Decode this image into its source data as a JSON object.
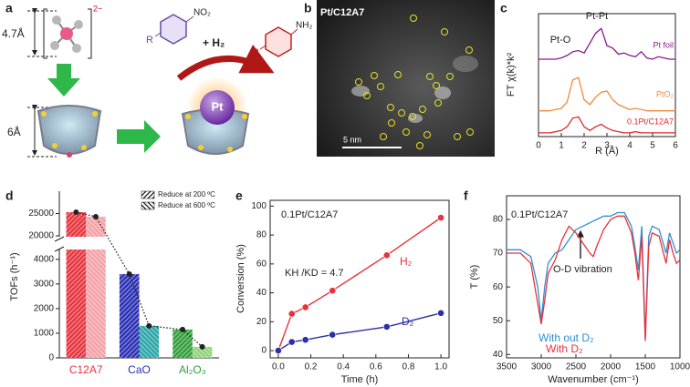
{
  "panels": {
    "a": {
      "panel_label": "a",
      "small_size": "4.7Å",
      "charge": "2−",
      "large_size": "6Å",
      "substituent_left": "R",
      "nitro_group": "NO₂",
      "reagent": "+ H₂",
      "substituent_right": "R",
      "amine_group": "NH₂",
      "metal": "Pt"
    },
    "b": {
      "panel_label": "b",
      "sample": "Pt/C12A7",
      "scale_bar": "5 nm"
    }
  },
  "chart_data": [
    {
      "panel_label": "c",
      "type": "line",
      "xlabel": "R (Å)",
      "ylabel": "FT χ(k)*k²",
      "annotations": [
        "Pt-Pt",
        "Pt-O"
      ],
      "x": [
        0,
        0.25,
        0.5,
        0.75,
        1,
        1.25,
        1.5,
        1.75,
        2,
        2.25,
        2.5,
        2.75,
        3,
        3.25,
        3.5,
        3.75,
        4,
        4.25,
        4.5,
        4.75,
        5,
        5.25,
        5.5,
        5.75,
        6
      ],
      "xlim": [
        0,
        6
      ],
      "xticks": [
        0,
        1,
        2,
        3,
        4,
        5,
        6
      ],
      "ylim": [
        0,
        10
      ],
      "legend": "inline",
      "frame": true,
      "series": [
        {
          "name": "Pt foil",
          "color": "#8b1a8b",
          "values": [
            6.3,
            6.3,
            6.3,
            6.3,
            6.4,
            6.6,
            6.9,
            7.0,
            6.8,
            7.6,
            8.4,
            8.8,
            7.4,
            7.2,
            6.7,
            6.8,
            6.6,
            6.5,
            6.9,
            6.4,
            6.3,
            6.5,
            6.4,
            6.3,
            6.3
          ]
        },
        {
          "name": "PtO₂",
          "color": "#f08a3c",
          "values": [
            2.1,
            2.1,
            2.1,
            2.2,
            2.3,
            2.8,
            4.6,
            4.8,
            3.0,
            2.6,
            3.2,
            3.6,
            3.7,
            3.0,
            2.6,
            2.4,
            2.2,
            2.3,
            2.2,
            2.1,
            2.1,
            2.1,
            2.1,
            2.1,
            2.1
          ]
        },
        {
          "name": "0.1Pt/C12A7",
          "color": "#e02828",
          "values": [
            0.3,
            0.3,
            0.3,
            0.4,
            0.5,
            0.8,
            1.5,
            1.6,
            0.8,
            0.5,
            0.8,
            1.0,
            0.7,
            0.5,
            0.4,
            0.3,
            0.3,
            0.4,
            0.3,
            0.3,
            0.3,
            0.3,
            0.3,
            0.3,
            0.3
          ]
        }
      ]
    },
    {
      "panel_label": "d",
      "type": "bar",
      "ylabel": "TOFs (h⁻¹)",
      "categories": [
        "C12A7",
        "CaO",
        "Al₂O₃"
      ],
      "category_colors": [
        "#e8323c",
        "#2b2fb5",
        "#2f9e3a"
      ],
      "ylim": [
        0,
        30000
      ],
      "ybreak": [
        4400,
        19800
      ],
      "yticks": [
        0,
        1000,
        2000,
        3000,
        4000,
        20000,
        25000
      ],
      "legend": "upper right",
      "series": [
        {
          "name": "Reduce at 200 ºC",
          "hatch": "/",
          "colors": [
            "#e8323c",
            "#2b2fb5",
            "#2f9e3a"
          ],
          "values": [
            25300,
            3400,
            1150
          ]
        },
        {
          "name": "Reduce at 600 ºC",
          "hatch": "\\",
          "colors": [
            "#f4a0a6",
            "#2aa5a8",
            "#8fd37a"
          ],
          "values": [
            24300,
            1300,
            450
          ]
        }
      ]
    },
    {
      "panel_label": "e",
      "type": "line",
      "xlabel": "Time (h)",
      "ylabel": "Conversion (%)",
      "annotations": [
        "0.1Pt/C12A7",
        "KH /KD = 4.7"
      ],
      "x": [
        0,
        0.083,
        0.167,
        0.333,
        0.667,
        1.0
      ],
      "xlim": [
        -0.05,
        1.05
      ],
      "xticks": [
        {
          "value": 0,
          "label": "0.0"
        },
        0.2,
        0.4,
        0.6,
        0.8,
        {
          "value": 1,
          "label": "1.0"
        }
      ],
      "ylim": [
        -5,
        104
      ],
      "yticks": [
        0,
        20,
        40,
        60,
        80,
        100
      ],
      "markers": true,
      "legend": "inline",
      "frame": true,
      "series": [
        {
          "name": "H₂",
          "color": "#e8323c",
          "values": [
            0,
            25.5,
            30,
            41.5,
            66,
            92
          ]
        },
        {
          "name": "D₂",
          "color": "#2b2fa8",
          "values": [
            0,
            6,
            7.5,
            11,
            16.5,
            26
          ]
        }
      ]
    },
    {
      "panel_label": "f",
      "type": "line",
      "xlabel": "Wavenumber (cm⁻¹)",
      "ylabel": "T (%)",
      "annotations": [
        "0.1Pt/C12A7",
        "O-D vibration"
      ],
      "x": [
        3500,
        3300,
        3150,
        3050,
        3000,
        2950,
        2900,
        2800,
        2700,
        2600,
        2500,
        2400,
        2300,
        2250,
        2200,
        2100,
        2000,
        1900,
        1800,
        1700,
        1650,
        1600,
        1550,
        1500,
        1450,
        1400,
        1300,
        1200,
        1150,
        1100,
        1050,
        1000
      ],
      "xlim": [
        3500,
        1000
      ],
      "xticks": [
        3500,
        3000,
        2500,
        2000,
        1500,
        1000
      ],
      "ylim": [
        39,
        87
      ],
      "yticks": [
        40,
        50,
        60,
        70,
        80
      ],
      "legend": "lower left",
      "frame": true,
      "series": [
        {
          "name": "With out D₂",
          "color": "#2f8fd0",
          "values": [
            71,
            71,
            69,
            60,
            50,
            60,
            67,
            70,
            71,
            74,
            77,
            78,
            79,
            79.5,
            80,
            81,
            81,
            82,
            82,
            78,
            72,
            65,
            78,
            45,
            75,
            78,
            77,
            70,
            76,
            73,
            70,
            71
          ]
        },
        {
          "name": "With D₂",
          "color": "#e8323c",
          "values": [
            70,
            70,
            67,
            55,
            49,
            56,
            64,
            68,
            74,
            78,
            76,
            73,
            70,
            69,
            72,
            77,
            80,
            81,
            81,
            76,
            70,
            62,
            75,
            44,
            72,
            76,
            75,
            67,
            74,
            70,
            67,
            68
          ]
        }
      ]
    }
  ]
}
